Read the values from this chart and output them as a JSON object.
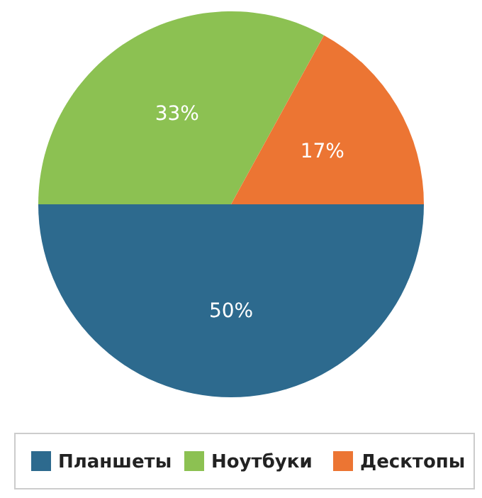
{
  "chart_data": {
    "type": "pie",
    "categories": [
      "Планшеты",
      "Ноутбуки",
      "Десктопы"
    ],
    "values": [
      50,
      33,
      17
    ],
    "colors": [
      "#2d6a8e",
      "#8cc152",
      "#ec7533"
    ],
    "value_labels": [
      "50%",
      "33%",
      "17%"
    ],
    "legend": "bottom"
  }
}
